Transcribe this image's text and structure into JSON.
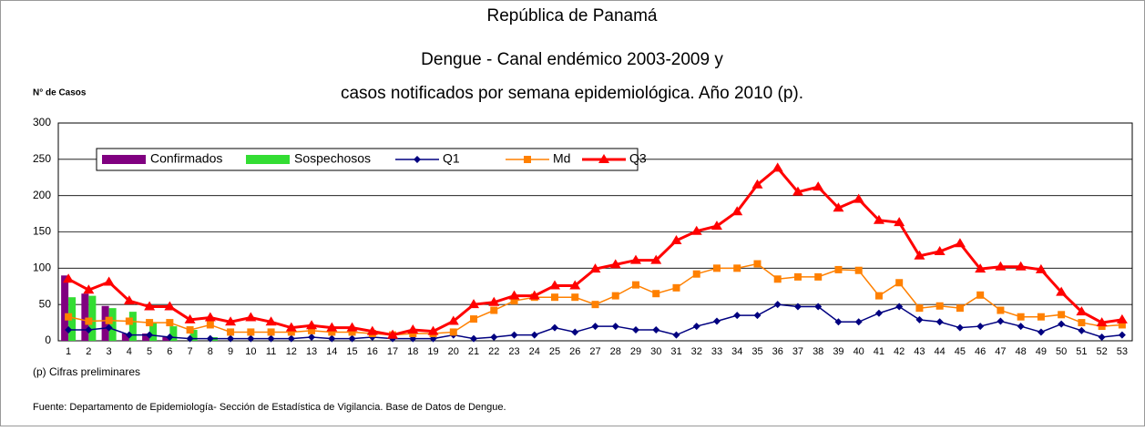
{
  "chart_data": {
    "type": "bar_line",
    "title": [
      "República de Panamá",
      "Dengue - Canal endémico 2003-2009 y",
      "casos notificados por semana epidemiológica. Año 2010 (p)."
    ],
    "y_label": "N° de Casos",
    "notes": [
      "(p) Cifras preliminares",
      "Fuente: Departamento de Epidemiología- Sección de Estadística de Vigilancia. Base de Datos de Dengue."
    ],
    "categories": [
      1,
      2,
      3,
      4,
      5,
      6,
      7,
      8,
      9,
      10,
      11,
      12,
      13,
      14,
      15,
      16,
      17,
      18,
      19,
      20,
      21,
      22,
      23,
      24,
      25,
      26,
      27,
      28,
      29,
      30,
      31,
      32,
      33,
      34,
      35,
      36,
      37,
      38,
      39,
      40,
      41,
      42,
      43,
      44,
      45,
      46,
      47,
      48,
      49,
      50,
      51,
      52,
      53
    ],
    "ylim": [
      0,
      300
    ],
    "yticks": [
      0,
      50,
      100,
      150,
      200,
      250,
      300
    ],
    "grid": true,
    "series": [
      {
        "name": "Confirmados",
        "kind": "bar",
        "color": "#800080",
        "values": [
          90,
          65,
          48,
          10,
          10,
          5,
          0,
          0,
          null,
          null,
          null,
          null,
          null,
          null,
          null,
          null,
          null,
          null,
          null,
          null,
          null,
          null,
          null,
          null,
          null,
          null,
          null,
          null,
          null,
          null,
          null,
          null,
          null,
          null,
          null,
          null,
          null,
          null,
          null,
          null,
          null,
          null,
          null,
          null,
          null,
          null,
          null,
          null,
          null,
          null,
          null,
          null,
          null
        ]
      },
      {
        "name": "Sospechosos",
        "kind": "bar",
        "color": "#33dd33",
        "values": [
          60,
          62,
          45,
          40,
          25,
          20,
          15,
          5,
          null,
          null,
          null,
          null,
          null,
          null,
          null,
          null,
          null,
          null,
          null,
          null,
          null,
          null,
          null,
          null,
          null,
          null,
          null,
          null,
          null,
          null,
          null,
          null,
          null,
          null,
          null,
          null,
          null,
          null,
          null,
          null,
          null,
          null,
          null,
          null,
          null,
          null,
          null,
          null,
          null,
          null,
          null,
          null,
          null
        ]
      },
      {
        "name": "Q1",
        "kind": "line",
        "marker": "diamond",
        "color": "#000080",
        "values": [
          15,
          15,
          18,
          8,
          8,
          5,
          3,
          3,
          3,
          3,
          3,
          3,
          5,
          3,
          3,
          5,
          3,
          3,
          3,
          8,
          3,
          5,
          8,
          8,
          18,
          12,
          20,
          20,
          15,
          15,
          8,
          20,
          27,
          35,
          35,
          50,
          47,
          47,
          26,
          26,
          38,
          47,
          29,
          26,
          18,
          20,
          27,
          20,
          12,
          23,
          14,
          5,
          8
        ]
      },
      {
        "name": "Md",
        "kind": "line",
        "marker": "square",
        "color": "#ff8000",
        "values": [
          33,
          27,
          28,
          27,
          25,
          25,
          15,
          22,
          12,
          12,
          12,
          12,
          14,
          12,
          12,
          10,
          8,
          10,
          10,
          12,
          30,
          42,
          55,
          60,
          60,
          60,
          50,
          62,
          77,
          65,
          73,
          92,
          100,
          100,
          106,
          85,
          88,
          88,
          98,
          97,
          62,
          80,
          45,
          48,
          45,
          63,
          42,
          33,
          33,
          36,
          25,
          20,
          22
        ]
      },
      {
        "name": "Q3",
        "kind": "line",
        "marker": "triangle",
        "color": "#ff0000",
        "values": [
          85,
          70,
          81,
          55,
          47,
          47,
          29,
          32,
          26,
          32,
          26,
          18,
          21,
          18,
          18,
          13,
          8,
          15,
          13,
          27,
          50,
          53,
          62,
          62,
          76,
          76,
          99,
          105,
          111,
          111,
          138,
          151,
          158,
          178,
          215,
          238,
          205,
          212,
          183,
          195,
          166,
          163,
          117,
          123,
          134,
          99,
          102,
          102,
          98,
          67,
          40,
          25,
          29
        ]
      }
    ]
  }
}
